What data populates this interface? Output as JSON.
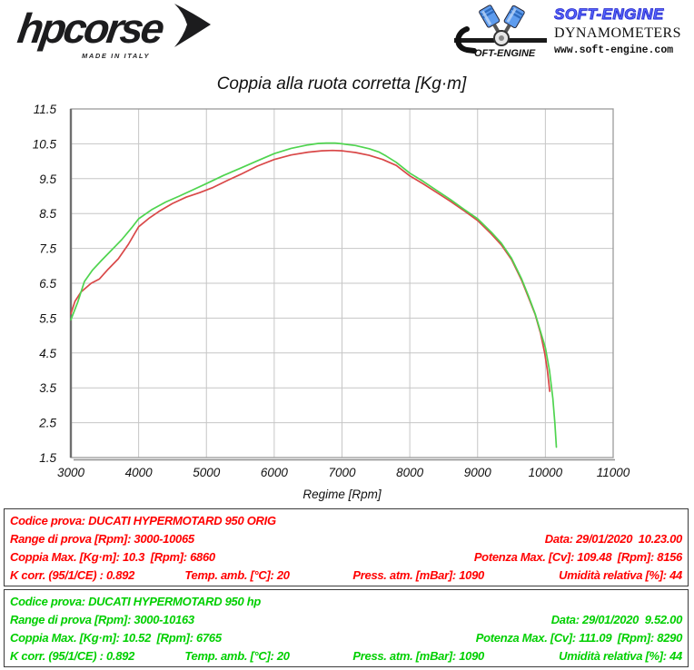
{
  "header": {
    "hpcorse_brand": "hpcorse",
    "hpcorse_tagline": "MADE IN ITALY",
    "softengine_s": "OFT-ENGINE",
    "softengine_brand": "SOFT-ENGINE",
    "softengine_subtitle": "DYNAMOMETERS",
    "softengine_url": "www.soft-engine.com"
  },
  "chart_data": {
    "type": "line",
    "title": "Coppia alla ruota corretta [Kg·m]",
    "xlabel": "Regime [Rpm]",
    "ylabel": "",
    "xlim": [
      3000,
      11000
    ],
    "ylim": [
      1.5,
      11.5
    ],
    "x_ticks": [
      3000,
      4000,
      5000,
      6000,
      7000,
      8000,
      9000,
      10000,
      11000
    ],
    "y_ticks": [
      1.5,
      2.5,
      3.5,
      4.5,
      5.5,
      6.5,
      7.5,
      8.5,
      9.5,
      10.5,
      11.5
    ],
    "grid": true,
    "legend": "none",
    "grid_color": "#c6c6c6",
    "frame_color": "#9a9a9a",
    "series": [
      {
        "name": "DUCATI HYPERMOTARD 950 ORIG",
        "color": "#d94848",
        "points": [
          [
            3000,
            5.62
          ],
          [
            3060,
            5.98
          ],
          [
            3150,
            6.25
          ],
          [
            3300,
            6.5
          ],
          [
            3420,
            6.62
          ],
          [
            3550,
            6.9
          ],
          [
            3700,
            7.2
          ],
          [
            3850,
            7.62
          ],
          [
            4000,
            8.12
          ],
          [
            4150,
            8.36
          ],
          [
            4300,
            8.56
          ],
          [
            4500,
            8.79
          ],
          [
            4700,
            8.97
          ],
          [
            4900,
            9.1
          ],
          [
            5100,
            9.25
          ],
          [
            5300,
            9.44
          ],
          [
            5500,
            9.62
          ],
          [
            5750,
            9.86
          ],
          [
            6000,
            10.05
          ],
          [
            6250,
            10.18
          ],
          [
            6500,
            10.26
          ],
          [
            6700,
            10.3
          ],
          [
            6860,
            10.31
          ],
          [
            7000,
            10.3
          ],
          [
            7200,
            10.25
          ],
          [
            7400,
            10.17
          ],
          [
            7600,
            10.05
          ],
          [
            7800,
            9.88
          ],
          [
            8000,
            9.58
          ],
          [
            8200,
            9.35
          ],
          [
            8400,
            9.1
          ],
          [
            8600,
            8.85
          ],
          [
            8800,
            8.58
          ],
          [
            9000,
            8.3
          ],
          [
            9200,
            7.92
          ],
          [
            9350,
            7.6
          ],
          [
            9500,
            7.18
          ],
          [
            9650,
            6.58
          ],
          [
            9750,
            6.1
          ],
          [
            9850,
            5.6
          ],
          [
            9930,
            5.05
          ],
          [
            9990,
            4.5
          ],
          [
            10030,
            4.0
          ],
          [
            10065,
            3.4
          ]
        ]
      },
      {
        "name": "DUCATI HYPERMOTARD 950 hp",
        "color": "#4fd44f",
        "points": [
          [
            3000,
            5.45
          ],
          [
            3100,
            5.95
          ],
          [
            3200,
            6.55
          ],
          [
            3320,
            6.88
          ],
          [
            3450,
            7.15
          ],
          [
            3600,
            7.45
          ],
          [
            3750,
            7.75
          ],
          [
            3900,
            8.1
          ],
          [
            4000,
            8.35
          ],
          [
            4200,
            8.62
          ],
          [
            4400,
            8.83
          ],
          [
            4600,
            9.0
          ],
          [
            4800,
            9.18
          ],
          [
            5000,
            9.36
          ],
          [
            5250,
            9.59
          ],
          [
            5500,
            9.8
          ],
          [
            5750,
            10.01
          ],
          [
            6000,
            10.22
          ],
          [
            6250,
            10.37
          ],
          [
            6500,
            10.47
          ],
          [
            6650,
            10.51
          ],
          [
            6765,
            10.52
          ],
          [
            6900,
            10.52
          ],
          [
            7000,
            10.5
          ],
          [
            7200,
            10.45
          ],
          [
            7400,
            10.36
          ],
          [
            7550,
            10.26
          ],
          [
            7650,
            10.15
          ],
          [
            7800,
            9.97
          ],
          [
            8000,
            9.66
          ],
          [
            8200,
            9.42
          ],
          [
            8400,
            9.16
          ],
          [
            8600,
            8.9
          ],
          [
            8800,
            8.62
          ],
          [
            9000,
            8.35
          ],
          [
            9200,
            7.97
          ],
          [
            9350,
            7.65
          ],
          [
            9500,
            7.22
          ],
          [
            9650,
            6.62
          ],
          [
            9750,
            6.14
          ],
          [
            9850,
            5.62
          ],
          [
            9930,
            5.1
          ],
          [
            10000,
            4.65
          ],
          [
            10060,
            4.0
          ],
          [
            10110,
            3.2
          ],
          [
            10140,
            2.5
          ],
          [
            10163,
            1.8
          ]
        ]
      }
    ]
  },
  "results": [
    {
      "color": "#ff0000",
      "codice": "Codice prova: DUCATI HYPERMOTARD 950 ORIG",
      "range": "Range di prova [Rpm]: 3000-10065",
      "data": "Data: 29/01/2020  10.23.00",
      "coppia": "Coppia Max. [Kg·m]: 10.3  [Rpm]: 6860",
      "potenza": "Potenza Max. [Cv]: 109.48  [Rpm]: 8156",
      "kcorr": "K corr. (95/1/CE) : 0.892",
      "temp": "Temp. amb. [°C]: 20",
      "press": "Press. atm. [mBar]: 1090",
      "umidita": "Umidità relativa [%]: 44"
    },
    {
      "color": "#00cf00",
      "codice": "Codice prova: DUCATI HYPERMOTARD 950 hp",
      "range": "Range di prova [Rpm]: 3000-10163",
      "data": "Data: 29/01/2020  9.52.00",
      "coppia": "Coppia Max. [Kg·m]: 10.52  [Rpm]: 6765",
      "potenza": "Potenza Max. [Cv]: 111.09  [Rpm]: 8290",
      "kcorr": "K corr. (95/1/CE) : 0.892",
      "temp": "Temp. amb. [°C]: 20",
      "press": "Press. atm. [mBar]: 1090",
      "umidita": "Umidità relativa [%]: 44"
    }
  ]
}
